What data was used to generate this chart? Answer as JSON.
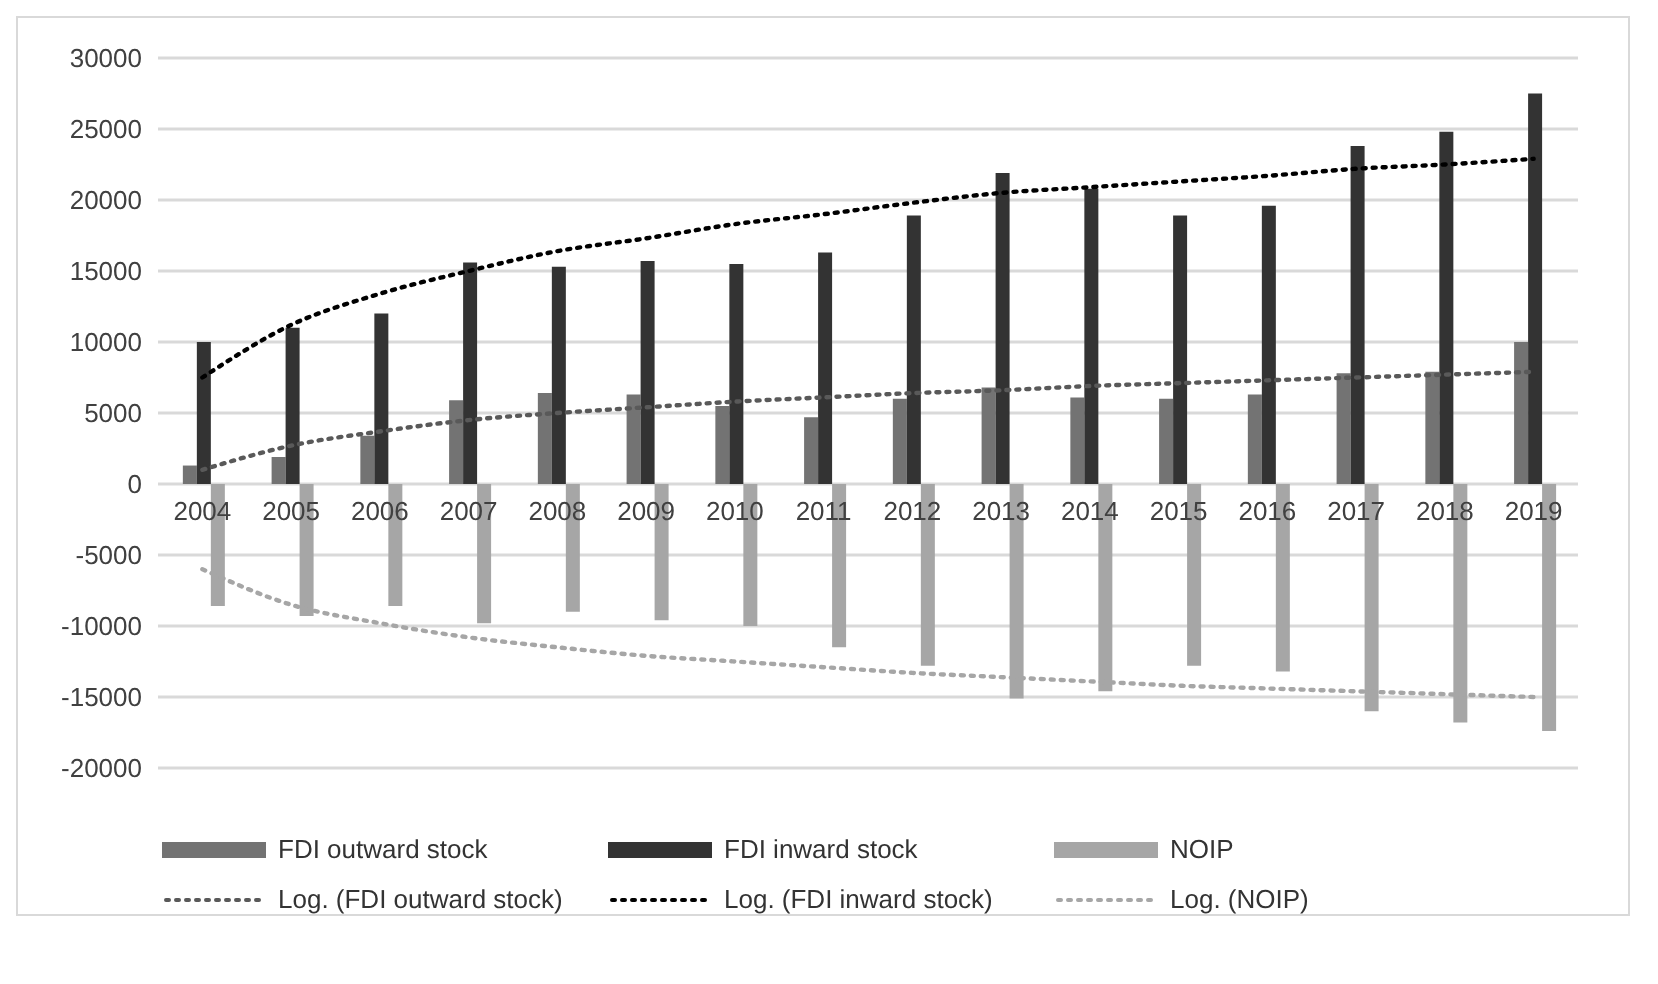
{
  "chart_data": {
    "type": "bar",
    "categories": [
      "2004",
      "2005",
      "2006",
      "2007",
      "2008",
      "2009",
      "2010",
      "2011",
      "2012",
      "2013",
      "2014",
      "2015",
      "2016",
      "2017",
      "2018",
      "2019"
    ],
    "series": [
      {
        "name": "FDI outward stock",
        "color": "#737373",
        "values": [
          1300,
          1900,
          3400,
          5900,
          6400,
          6300,
          5500,
          4700,
          6000,
          6800,
          6100,
          6000,
          6300,
          7800,
          7900,
          10000
        ]
      },
      {
        "name": "FDI inward stock",
        "color": "#333333",
        "values": [
          10000,
          11000,
          12000,
          15600,
          15300,
          15700,
          15500,
          16300,
          18900,
          21900,
          20800,
          18900,
          19600,
          23800,
          24800,
          27500
        ]
      },
      {
        "name": "NOIP",
        "color": "#a6a6a6",
        "values": [
          -8600,
          -9300,
          -8600,
          -9800,
          -9000,
          -9600,
          -10000,
          -11500,
          -12800,
          -15100,
          -14600,
          -12800,
          -13200,
          -16000,
          -16800,
          -17400
        ]
      },
      {
        "name": "Log. (FDI outward stock)",
        "type": "line",
        "line_style": "dotted",
        "marker": "none",
        "color": "#595959",
        "values": [
          1000,
          2700,
          3700,
          4500,
          5000,
          5400,
          5800,
          6100,
          6400,
          6600,
          6900,
          7100,
          7300,
          7500,
          7700,
          7900
        ]
      },
      {
        "name": "Log. (FDI inward stock)",
        "type": "line",
        "line_style": "dotted",
        "marker": "none",
        "color": "#000000",
        "values": [
          7500,
          11200,
          13400,
          15000,
          16400,
          17300,
          18300,
          19000,
          19800,
          20500,
          20900,
          21300,
          21700,
          22200,
          22500,
          22900
        ]
      },
      {
        "name": "Log. (NOIP)",
        "type": "line",
        "line_style": "dotted",
        "marker": "none",
        "color": "#a6a6a6",
        "values": [
          -6000,
          -8500,
          -9800,
          -10800,
          -11500,
          -12100,
          -12500,
          -12900,
          -13300,
          -13600,
          -13900,
          -14200,
          -14400,
          -14600,
          -14800,
          -15000
        ]
      }
    ],
    "ylim": [
      -20000,
      30000
    ],
    "yticks": [
      -20000,
      -15000,
      -10000,
      -5000,
      0,
      5000,
      10000,
      15000,
      20000,
      25000,
      30000
    ],
    "grid": "y",
    "legend": "bottom"
  }
}
